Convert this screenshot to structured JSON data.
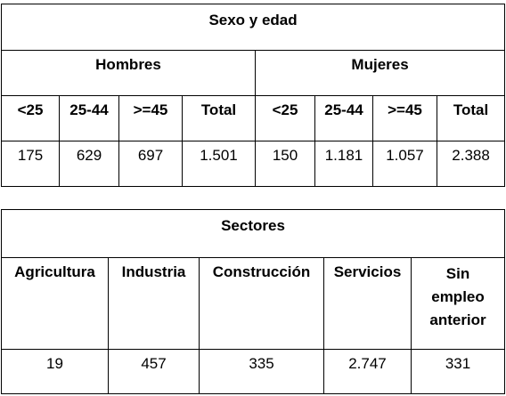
{
  "table1": {
    "title": "Sexo y edad",
    "groups": [
      "Hombres",
      "Mujeres"
    ],
    "columns": [
      "<25",
      "25-44",
      ">=45",
      "Total",
      "<25",
      "25-44",
      ">=45",
      "Total"
    ],
    "values": [
      "175",
      "629",
      "697",
      "1.501",
      "150",
      "1.181",
      "1.057",
      "2.388"
    ]
  },
  "table2": {
    "title": "Sectores",
    "columns": [
      "Agricultura",
      "Industria",
      "Construcción",
      "Servicios",
      "Sin empleo anterior"
    ],
    "values": [
      "19",
      "457",
      "335",
      "2.747",
      "331"
    ]
  }
}
